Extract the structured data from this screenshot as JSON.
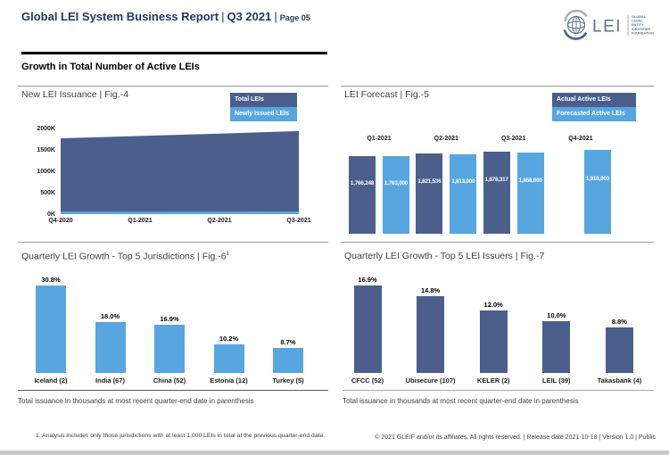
{
  "header": {
    "title": "Global LEI System Business Report",
    "separator": "|",
    "period": "Q3 2021",
    "page": "Page 05"
  },
  "logo": {
    "abbr": "LEI",
    "org_lines": [
      "GLOBAL",
      "LEGAL",
      "ENTITY",
      "IDENTIFIER",
      "FOUNDATION"
    ]
  },
  "section": {
    "heading": "Growth in Total Number of Active LEIs"
  },
  "chart_data": [
    {
      "id": "fig4",
      "type": "area",
      "title": "New LEI Issuance | Fig.-4",
      "x": [
        "Q4-2020",
        "Q1-2021",
        "Q2-2021",
        "Q3-2021"
      ],
      "series": [
        {
          "name": "Total LEIs",
          "color": "#4C5F8C",
          "values_thousands": [
            1770,
            1825,
            1880,
            1940
          ]
        },
        {
          "name": "Newly Issued LEIs",
          "color": "#58A6E0",
          "values_thousands": [
            60,
            58,
            60,
            62
          ]
        }
      ],
      "y_ticks": [
        "0K",
        "500K",
        "1000K",
        "1500K",
        "2000K"
      ],
      "ylim_thousands": [
        0,
        2000
      ],
      "legend_position": "top-right",
      "grid": false
    },
    {
      "id": "fig5",
      "type": "bar",
      "title": "LEI Forecast | Fig.-5",
      "categories": [
        "Q1-2021",
        "Q2-2021",
        "Q3-2021",
        "Q4-2021"
      ],
      "series": [
        {
          "name": "Actual Active LEIs",
          "color": "#4C5F8C",
          "values": [
            1766248,
            1821536,
            1878317,
            null
          ],
          "labels": [
            "1,766,248",
            "1,821,536",
            "1,878,317",
            null
          ]
        },
        {
          "name": "Forecasted Active LEIs",
          "color": "#58A6E0",
          "values": [
            1763000,
            1813000,
            1858000,
            1910000
          ],
          "labels": [
            "1,763,000",
            "1,813,000",
            "1,858,000",
            "1,910,000"
          ]
        }
      ],
      "value_axis": "hidden",
      "category_labels_position": "above",
      "legend_position": "top-right"
    },
    {
      "id": "fig6",
      "type": "bar",
      "title": "Quarterly LEI Growth - Top 5 Jurisdictions | Fig.-6",
      "footnote_marker": "1",
      "categories": [
        "Iceland (2)",
        "India (67)",
        "China (52)",
        "Estonia (12)",
        "Turkey (5)"
      ],
      "values": [
        30.8,
        18.0,
        16.9,
        10.2,
        8.7
      ],
      "value_labels": [
        "30.8%",
        "18.0%",
        "16.9%",
        "10.2%",
        "8.7%"
      ],
      "bar_color": "#58A6E0",
      "value_axis": "hidden"
    },
    {
      "id": "fig7",
      "type": "bar",
      "title": "Quarterly LEI Growth - Top 5 LEI Issuers | Fig.-7",
      "categories": [
        "CFCC (52)",
        "Ubisecure (107)",
        "KELER (2)",
        "LEIL (39)",
        "Takasbank (4)"
      ],
      "values": [
        16.9,
        14.8,
        12.0,
        10.0,
        8.8
      ],
      "value_labels": [
        "16.9%",
        "14.8%",
        "12.0%",
        "10.0%",
        "8.8%"
      ],
      "bar_color": "#4C5F8C",
      "value_axis": "hidden"
    }
  ],
  "captions": {
    "jurisdictions": "Total issuance in thousands at most recent quarter-end date in parenthesis",
    "issuers": "Total issuance in thousands at most recent quarter-end date in parenthesis"
  },
  "footnote": "1. Analysis includes only those jurisdictions with at least 1,000 LEIs in total at the previous quarter-end date.",
  "footer": "© 2021 GLEIF and/or its affiliates. All rights reserved. | Release date 2021-10-18 | Version 1.0 | Public",
  "colors": {
    "navy": "#1F3864",
    "dark_blue": "#4C5F8C",
    "light_blue": "#58A6E0"
  }
}
